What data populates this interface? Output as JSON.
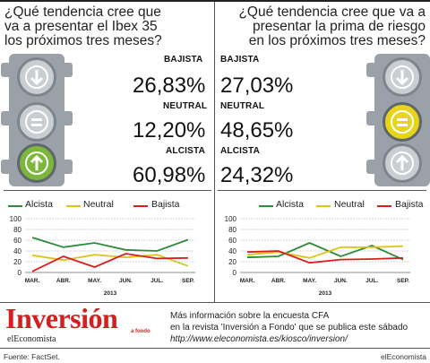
{
  "left": {
    "question": [
      "¿Qué tendencia cree que",
      "va a presentar el Ibex 35",
      "los próximos tres meses?"
    ],
    "rows": [
      {
        "label": "BAJISTA",
        "value": "26,83%"
      },
      {
        "label": "NEUTRAL",
        "value": "12,20%"
      },
      {
        "label": "ALCISTA",
        "value": "60,98%"
      }
    ],
    "highlight": "alcista",
    "highlight_color": "#7bb73a"
  },
  "right": {
    "question": [
      "¿Qué tendencia cree que va a",
      "presentar la prima de riesgo",
      "en los próximos tres meses?"
    ],
    "rows": [
      {
        "label": "BAJISTA",
        "value": "27,03%"
      },
      {
        "label": "NEUTRAL",
        "value": "48,65%"
      },
      {
        "label": "ALCISTA",
        "value": "24,32%"
      }
    ],
    "highlight": "neutral",
    "highlight_color": "#e8d418"
  },
  "legend": {
    "alcista": "Alcista",
    "neutral": "Neutral",
    "bajista": "Bajista"
  },
  "colors": {
    "alcista": "#2e8b3a",
    "neutral": "#e0c21a",
    "bajista": "#d62020",
    "light_gray": "#c9ced3"
  },
  "chart_data": [
    {
      "type": "line",
      "categories": [
        "MAR.",
        "ABR.",
        "MAY.",
        "JUN.",
        "JUL.",
        "SEP."
      ],
      "xlabel": "2013",
      "ylim": [
        0,
        100
      ],
      "yticks": [
        0,
        20,
        40,
        60,
        80,
        100
      ],
      "grid": true,
      "series": [
        {
          "name": "Alcista",
          "key": "alcista",
          "values": [
            65,
            47,
            55,
            42,
            40,
            61
          ]
        },
        {
          "name": "Neutral",
          "key": "neutral",
          "values": [
            32,
            23,
            33,
            28,
            33,
            12
          ]
        },
        {
          "name": "Bajista",
          "key": "bajista",
          "values": [
            2,
            30,
            10,
            35,
            26,
            27
          ]
        }
      ]
    },
    {
      "type": "line",
      "categories": [
        "MAR.",
        "ABR.",
        "MAY.",
        "JUN.",
        "JUL.",
        "SEP."
      ],
      "xlabel": "2013",
      "ylim": [
        0,
        100
      ],
      "yticks": [
        0,
        20,
        40,
        60,
        80,
        100
      ],
      "grid": true,
      "series": [
        {
          "name": "Alcista",
          "key": "alcista",
          "values": [
            28,
            30,
            55,
            30,
            50,
            24
          ]
        },
        {
          "name": "Neutral",
          "key": "neutral",
          "values": [
            33,
            38,
            27,
            47,
            47,
            49
          ]
        },
        {
          "name": "Bajista",
          "key": "bajista",
          "values": [
            38,
            40,
            18,
            24,
            25,
            27
          ]
        }
      ]
    }
  ],
  "banner": {
    "logo_title": "Inversión",
    "logo_sub": "a fondo",
    "logo_brand": "elEconomista",
    "lines": [
      "Más información sobre la encuesta CFA",
      "en la revista 'Inversión a Fondo' que se publica este sábado",
      "http://www.eleconomista.es/kiosco/inversion/"
    ]
  },
  "footer": {
    "source": "Fuente: FactSet.",
    "brand": "elEconomista"
  }
}
